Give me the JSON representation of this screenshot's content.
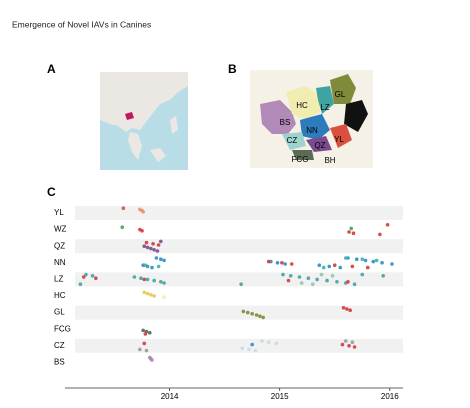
{
  "title": "Emergence of Novel IAVs in Canines",
  "panel_a": {
    "label": "A"
  },
  "panel_b": {
    "label": "B",
    "regions": [
      "GL",
      "HC",
      "LZ",
      "BS",
      "NN",
      "YL",
      "CZ",
      "QZ",
      "FCG",
      "BH"
    ]
  },
  "chart_data": {
    "type": "strip",
    "panel_label": "C",
    "xlim": [
      2013.05,
      2016.12
    ],
    "xticks": [
      2014,
      2015,
      2016
    ],
    "series": [
      {
        "name": "YL",
        "groups": [
          {
            "color": "#d9503f",
            "x": [
              2013.58
            ]
          },
          {
            "color": "#e8946a",
            "x": [
              2013.73,
              2013.75,
              2013.76
            ]
          }
        ]
      },
      {
        "name": "WZ",
        "groups": [
          {
            "color": "#4a9a5a",
            "x": [
              2013.57,
              2015.65
            ]
          },
          {
            "color": "#d03a3a",
            "x": [
              2013.73,
              2013.75,
              2015.63,
              2015.67,
              2015.91,
              2015.98
            ]
          }
        ]
      },
      {
        "name": "QZ",
        "groups": [
          {
            "color": "#7a4b8f",
            "x": [
              2013.77,
              2013.8,
              2013.83,
              2013.86,
              2013.89,
              2013.92
            ]
          },
          {
            "color": "#d03a3a",
            "x": [
              2013.79,
              2013.85,
              2013.9
            ]
          }
        ]
      },
      {
        "name": "NN",
        "groups": [
          {
            "color": "#2b8fc4",
            "x": [
              2013.76,
              2013.8,
              2013.84,
              2013.88,
              2013.92,
              2013.95,
              2014.92,
              2014.98,
              2015.05,
              2015.36,
              2015.45,
              2015.55,
              2015.62,
              2015.7,
              2015.78,
              2015.85,
              2015.93,
              2016.02
            ]
          },
          {
            "color": "#3fb0a8",
            "x": [
              2013.78,
              2013.9,
              2015.4,
              2015.6,
              2015.75,
              2015.88
            ]
          },
          {
            "color": "#d03a3a",
            "x": [
              2014.9,
              2015.02,
              2015.11,
              2015.5,
              2015.66,
              2015.8
            ]
          }
        ]
      },
      {
        "name": "LZ",
        "groups": [
          {
            "color": "#3fa3a1",
            "x": [
              2013.19,
              2013.24,
              2013.3,
              2013.68,
              2013.74,
              2013.8,
              2013.86,
              2013.92,
              2013.95,
              2014.65,
              2015.03,
              2015.1,
              2015.18,
              2015.26,
              2015.34,
              2015.43,
              2015.52,
              2015.6,
              2015.68,
              2015.75,
              2015.94
            ]
          },
          {
            "color": "#d03a3a",
            "x": [
              2013.22,
              2013.33,
              2013.77,
              2015.08,
              2015.62
            ]
          },
          {
            "color": "#8cc8a8",
            "x": [
              2015.2,
              2015.3,
              2015.38,
              2015.48
            ]
          }
        ]
      },
      {
        "name": "HC",
        "groups": [
          {
            "color": "#e6c94a",
            "x": [
              2013.77,
              2013.8,
              2013.83,
              2013.86
            ]
          },
          {
            "color": "#f1ecb0",
            "x": [
              2013.95
            ]
          }
        ]
      },
      {
        "name": "GL",
        "groups": [
          {
            "color": "#7f8a3a",
            "x": [
              2014.67,
              2014.71,
              2014.75,
              2014.79,
              2014.82,
              2014.85
            ]
          },
          {
            "color": "#d03a3a",
            "x": [
              2015.58,
              2015.61,
              2015.64
            ]
          }
        ]
      },
      {
        "name": "FCG",
        "groups": [
          {
            "color": "#4f6b4f",
            "x": [
              2013.76,
              2013.79,
              2013.82
            ]
          },
          {
            "color": "#d03a3a",
            "x": [
              2013.78
            ]
          }
        ]
      },
      {
        "name": "CZ",
        "groups": [
          {
            "color": "#9a9a9a",
            "x": [
              2013.73,
              2013.79,
              2015.6,
              2015.66
            ]
          },
          {
            "color": "#d03a3a",
            "x": [
              2013.77,
              2015.57,
              2015.63,
              2015.68
            ]
          },
          {
            "color": "#c4dde4",
            "x": [
              2014.66,
              2014.72,
              2014.78,
              2014.84,
              2014.9,
              2014.97
            ]
          },
          {
            "color": "#2b8fc4",
            "x": [
              2014.75
            ]
          }
        ]
      },
      {
        "name": "BS",
        "groups": [
          {
            "color": "#a585b8",
            "x": [
              2013.82,
              2013.83,
              2013.84
            ]
          }
        ]
      }
    ]
  }
}
